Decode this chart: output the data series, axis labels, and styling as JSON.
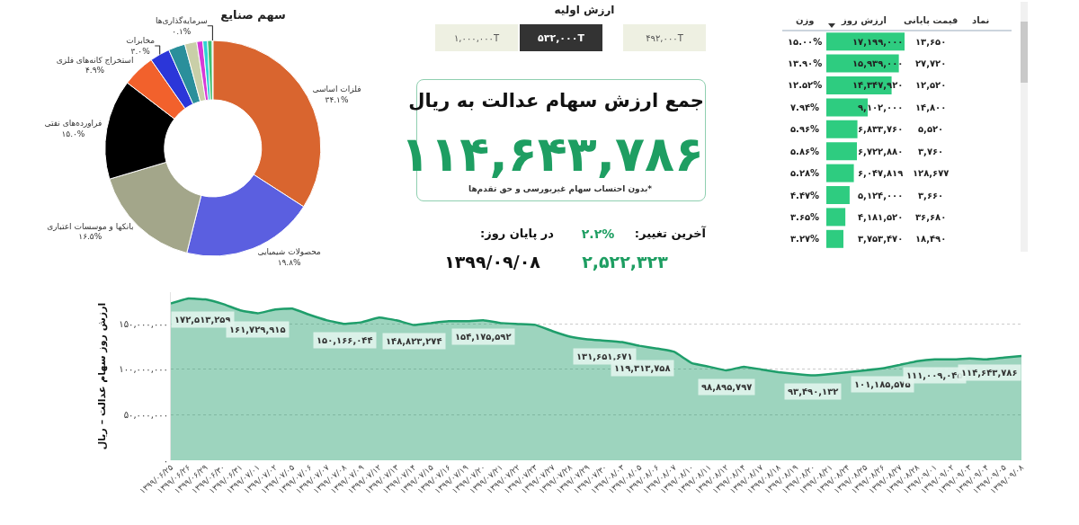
{
  "chart_data": [
    {
      "type": "donut",
      "title": "سهم صنایع",
      "categories": [
        "فلزات اساسی",
        "محصولات شیمیایی",
        "بانکها و موسسات اعتباری",
        "فراورده‌های نفتی",
        "استخراج کانه‌های فلزی",
        "مخابرات",
        null,
        null,
        null,
        null,
        null,
        "سرمایه‌گذاری‌ها"
      ],
      "values": [
        34.1,
        19.8,
        16.5,
        15.0,
        4.9,
        3.0,
        2.5,
        1.8,
        0.9,
        0.7,
        0.7,
        0.1
      ],
      "value_labels": [
        "۳۴.۱%",
        "۱۹.۸%",
        "۱۶.۵%",
        "۱۵.۰%",
        "۴.۹%",
        "۳.۰%",
        null,
        null,
        null,
        null,
        null,
        "۰.۱%"
      ],
      "colors": [
        "#d9652f",
        "#5b5fe0",
        "#a3a68a",
        "#000000",
        "#f2612c",
        "#2b36d9",
        "#2a8f9b",
        "#c9cfa8",
        "#d63ad6",
        "#2fd3d3",
        "#3fbf6f",
        "#888888"
      ],
      "legend": false
    },
    {
      "type": "other",
      "title": "ارزش اولیه",
      "annotations": [
        "۴۹۲,۰۰۰T",
        "۵۳۲,۰۰۰T",
        "۱,۰۰۰,۰۰۰T",
        "جمع ارزش سهام عدالت به ریال",
        "۱۱۴,۶۴۳,۷۸۶",
        "*بدون احتساب سهام غیربورسی و حق تقدم‌ها",
        "آخرین تغییر:",
        "۲.۲%",
        "۲,۵۲۲,۳۲۳",
        "در پایان روز:",
        "۱۳۹۹/۰۹/۰۸"
      ]
    },
    {
      "type": "bar",
      "orientation": "horizontal",
      "categories": [
        null,
        null,
        null,
        null,
        null,
        null,
        null,
        null,
        null,
        null
      ],
      "values": [
        17199000,
        15939000,
        14347920,
        9102000,
        6833760,
        6722880,
        6047819,
        5124000,
        4181520,
        3753470
      ],
      "value_labels": [
        "۱۷,۱۹۹,۰۰۰",
        "۱۵,۹۳۹,۰۰۰",
        "۱۴,۳۴۷,۹۲۰",
        "۹,۱۰۲,۰۰۰",
        "۶,۸۳۳,۷۶۰",
        "۶,۷۲۲,۸۸۰",
        "۶,۰۴۷,۸۱۹",
        "۵,۱۲۴,۰۰۰",
        "۴,۱۸۱,۵۲۰",
        "۳,۷۵۳,۴۷۰"
      ],
      "color": "#2ecc80",
      "legend": false,
      "annotations": [
        "وزن",
        "ارزش روز",
        "قیمت پایانی",
        "نماد",
        "۱۳,۶۵۰",
        "۱۵.۰۰%",
        "۲۷,۷۲۰",
        "۱۳.۹۰%",
        "۱۲,۵۲۰",
        "۱۲.۵۲%",
        "۱۴,۸۰۰",
        "۷.۹۴%",
        "۵,۵۲۰",
        "۵.۹۶%",
        "۳,۷۶۰",
        "۵.۸۶%",
        "۱۲۸,۶۷۷",
        "۵.۲۸%",
        "۳,۶۶۰",
        "۴.۴۷%",
        "۳۶,۶۸۰",
        "۳.۶۵%",
        "۱۸,۴۹۰",
        "۳.۲۷%"
      ]
    },
    {
      "type": "area",
      "ylabel": "ارزش روز سهام عدالت – ریال",
      "color": "#1f9e6b",
      "grid": "y",
      "legend": false,
      "categories": [
        "۱۳۹۹/۰۶/۲۵",
        "۱۳۹۹/۰۶/۲۶",
        "۱۳۹۹/۰۶/۲۹",
        "۱۳۹۹/۰۶/۳۰",
        "۱۳۹۹/۰۶/۳۱",
        "۱۳۹۹/۰۷/۰۱",
        "۱۳۹۹/۰۷/۰۲",
        "۱۳۹۹/۰۷/۰۵",
        "۱۳۹۹/۰۷/۰۶",
        "۱۳۹۹/۰۷/۰۷",
        "۱۳۹۹/۰۷/۰۸",
        "۱۳۹۹/۰۷/۰۹",
        "۱۳۹۹/۰۷/۱۲",
        "۱۳۹۹/۰۷/۱۳",
        "۱۳۹۹/۰۷/۱۴",
        "۱۳۹۹/۰۷/۱۵",
        "۱۳۹۹/۰۷/۱۶",
        "۱۳۹۹/۰۷/۱۹",
        "۱۳۹۹/۰۷/۲۰",
        "۱۳۹۹/۰۷/۲۱",
        "۱۳۹۹/۰۷/۲۲",
        "۱۳۹۹/۰۷/۲۳",
        "۱۳۹۹/۰۷/۲۷",
        "۱۳۹۹/۰۷/۲۸",
        "۱۳۹۹/۰۷/۲۹",
        "۱۳۹۹/۰۷/۳۰",
        "۱۳۹۹/۰۸/۰۳",
        "۱۳۹۹/۰۸/۰۵",
        "۱۳۹۹/۰۸/۰۶",
        "۱۳۹۹/۰۸/۰۷",
        "۱۳۹۹/۰۸/۱۰",
        "۱۳۹۹/۰۸/۱۱",
        "۱۳۹۹/۰۸/۱۲",
        "۱۳۹۹/۰۸/۱۴",
        "۱۳۹۹/۰۸/۱۷",
        "۱۳۹۹/۰۸/۱۸",
        "۱۳۹۹/۰۸/۱۹",
        "۱۳۹۹/۰۸/۲۰",
        "۱۳۹۹/۰۸/۲۱",
        "۱۳۹۹/۰۸/۲۴",
        "۱۳۹۹/۰۸/۲۵",
        "۱۳۹۹/۰۸/۲۶",
        "۱۳۹۹/۰۸/۲۷",
        "۱۳۹۹/۰۸/۲۸",
        "۱۳۹۹/۰۹/۰۱",
        "۱۳۹۹/۰۹/۰۲",
        "۱۳۹۹/۰۹/۰۳",
        "۱۳۹۹/۰۹/۰۴",
        "۱۳۹۹/۰۹/۰۵",
        "۱۳۹۹/۰۹/۰۸"
      ],
      "values": [
        172513259,
        178000000,
        177000000,
        172000000,
        165000000,
        161729915,
        166000000,
        167000000,
        160000000,
        154000000,
        150166044,
        152000000,
        157000000,
        154000000,
        148823274,
        151000000,
        153000000,
        153000000,
        154175592,
        151000000,
        150000000,
        149000000,
        142000000,
        136000000,
        133000000,
        131651671,
        130000000,
        126000000,
        123000000,
        119313758,
        107000000,
        103000000,
        98895797,
        103000000,
        100000000,
        97000000,
        95000000,
        93490132,
        95000000,
        97000000,
        99000000,
        101185575,
        105000000,
        109000000,
        111009045,
        111000000,
        112000000,
        111000000,
        113000000,
        114643786
      ],
      "value_labels": [
        "۱۷۲,۵۱۳,۲۵۹",
        null,
        null,
        null,
        null,
        "۱۶۱,۷۲۹,۹۱۵",
        null,
        null,
        null,
        null,
        "۱۵۰,۱۶۶,۰۴۴",
        null,
        null,
        null,
        "۱۴۸,۸۲۳,۲۷۴",
        null,
        null,
        null,
        "۱۵۴,۱۷۵,۵۹۲",
        null,
        null,
        null,
        null,
        null,
        null,
        "۱۳۱,۶۵۱,۶۷۱",
        null,
        null,
        null,
        "۱۱۹,۳۱۳,۷۵۸",
        null,
        null,
        "۹۸,۸۹۵,۷۹۷",
        null,
        null,
        null,
        null,
        "۹۳,۴۹۰,۱۳۲",
        null,
        null,
        null,
        "۱۰۱,۱۸۵,۵۷۵",
        null,
        null,
        "۱۱۱,۰۰۹,۰۴۵",
        null,
        null,
        null,
        null,
        "۱۱۴,۶۴۳,۷۸۶"
      ],
      "ylim": [
        0,
        185000000
      ],
      "yticks": [
        {
          "value": 0,
          "label": "۰"
        },
        {
          "value": 50000000,
          "label": "۵۰,۰۰۰,۰۰۰"
        },
        {
          "value": 100000000,
          "label": "۱۰۰,۰۰۰,۰۰۰"
        },
        {
          "value": 150000000,
          "label": "۱۵۰,۰۰۰,۰۰۰"
        }
      ]
    }
  ]
}
